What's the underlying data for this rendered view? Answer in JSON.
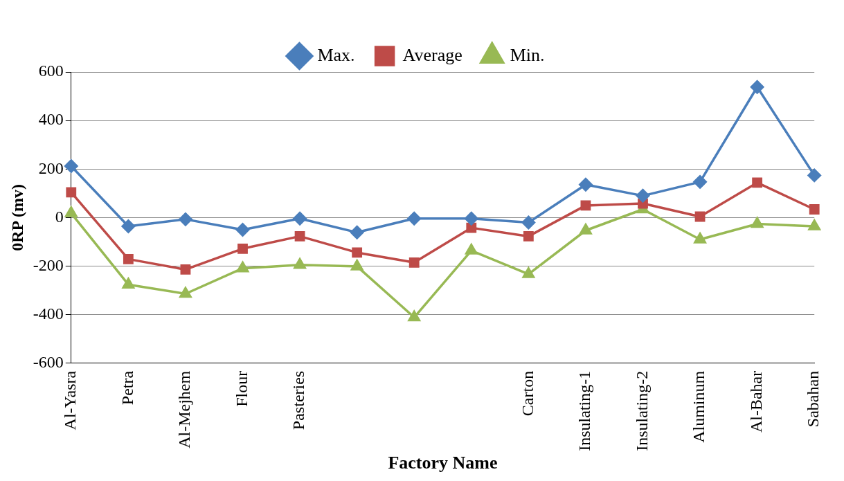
{
  "chart_data": {
    "type": "line",
    "xlabel": "Factory Name",
    "ylabel": "0RP (mv)",
    "categories": [
      "Al-Yasra",
      "Petra",
      "Al-Mejhem",
      "Flour",
      "Pasteries",
      null,
      null,
      null,
      "Carton",
      "Insulating-1",
      "Insulating-2",
      "Aluminum",
      "Al-Bahar",
      "Sabahan"
    ],
    "series": [
      {
        "name": "Max.",
        "color": "#4a7ebb",
        "marker": "diamond",
        "values": [
          212,
          -36,
          -7,
          -50,
          -4,
          -61,
          -4,
          -4,
          -20,
          136,
          90,
          147,
          538,
          174
        ]
      },
      {
        "name": "Average",
        "color": "#be4b48",
        "marker": "square",
        "values": [
          104,
          -171,
          -214,
          -128,
          -77,
          -144,
          -185,
          -42,
          -77,
          50,
          58,
          4,
          144,
          34
        ]
      },
      {
        "name": "Min.",
        "color": "#98b954",
        "marker": "triangle",
        "values": [
          18,
          -276,
          -314,
          -209,
          -195,
          -201,
          -411,
          -136,
          -233,
          -53,
          34,
          -90,
          -26,
          -36
        ]
      }
    ],
    "ylim": [
      -600,
      600
    ],
    "yticks": [
      -600,
      -400,
      -200,
      0,
      200,
      400,
      600
    ],
    "grid": "y",
    "legend": "top",
    "line_style": "solid"
  }
}
